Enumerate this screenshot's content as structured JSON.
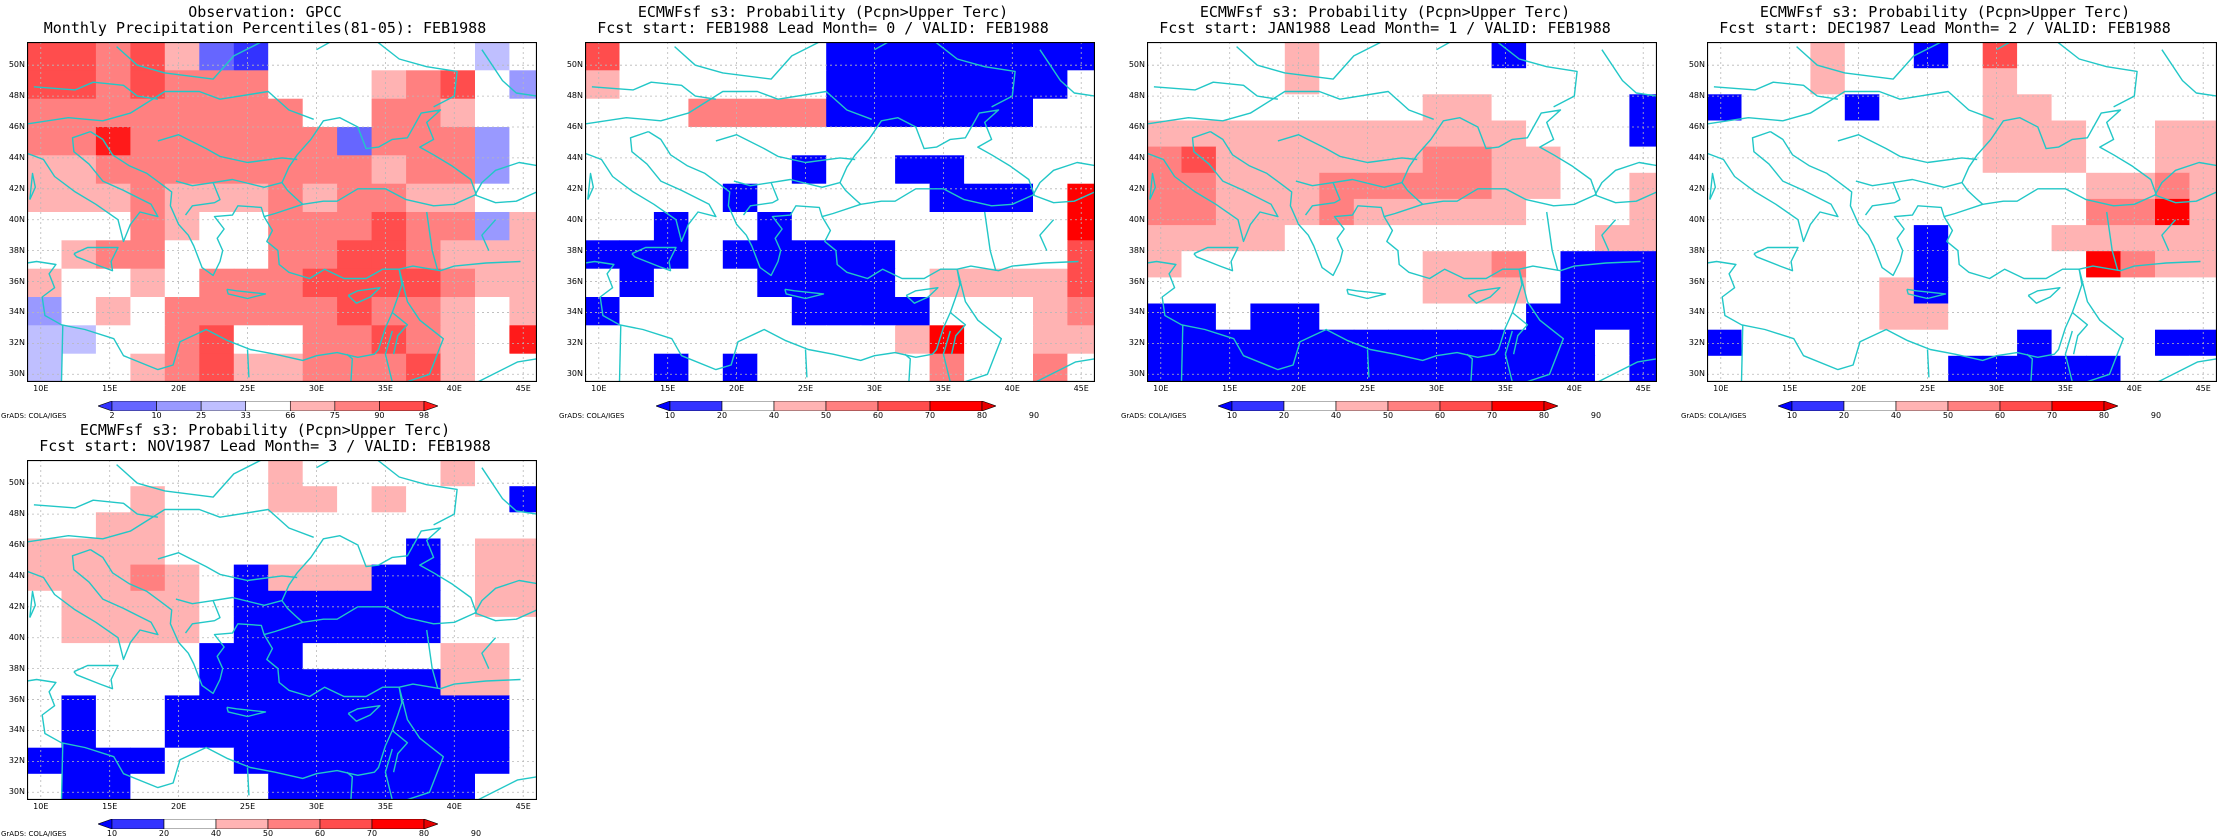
{
  "colors": {
    "percentile_scale": [
      "#3333ff",
      "#6666ff",
      "#9999ff",
      "#bfbfff",
      "#ffffff",
      "#ffb3b3",
      "#ff8080",
      "#ff4d4d",
      "#ff1a1a"
    ],
    "probability_scale": [
      "#0000ff",
      "#3333ff",
      "#ffffff",
      "#ffb3b3",
      "#ff8080",
      "#ff4d4d",
      "#ff0000",
      "#e60000"
    ],
    "coast": "#22c7c7",
    "grid": "#b8b8b8"
  },
  "map_extent": {
    "lon_range": [
      9,
      46
    ],
    "lat_range": [
      29.5,
      51.5
    ],
    "lon_ticks": [
      "10E",
      "15E",
      "20E",
      "25E",
      "30E",
      "35E",
      "40E",
      "45E"
    ],
    "lat_ticks": [
      "50N",
      "48N",
      "46N",
      "44N",
      "42N",
      "40N",
      "38N",
      "36N",
      "34N",
      "32N",
      "30N"
    ],
    "cell_size_deg": 2.5
  },
  "credit": "GrADS: COLA/IGES",
  "panels": [
    {
      "id": "observation",
      "title_line1": "Observation: GPCC",
      "title_line2": "Monthly Precipitation Percentiles(81-05): FEB1988",
      "colorbar": {
        "type": "percentile",
        "labels": [
          "2",
          "10",
          "25",
          "33",
          "66",
          "75",
          "90",
          "98"
        ]
      },
      "grid": [
        [
          7,
          7,
          6,
          7,
          5,
          1,
          0,
          4,
          4,
          4,
          4,
          4,
          4,
          3,
          4
        ],
        [
          7,
          7,
          6,
          7,
          6,
          6,
          6,
          4,
          4,
          4,
          5,
          6,
          7,
          4,
          2
        ],
        [
          6,
          6,
          6,
          6,
          6,
          6,
          6,
          6,
          4,
          4,
          6,
          6,
          5,
          4,
          4
        ],
        [
          6,
          6,
          8,
          6,
          6,
          6,
          6,
          6,
          6,
          1,
          6,
          6,
          6,
          2,
          4
        ],
        [
          5,
          5,
          6,
          6,
          6,
          6,
          6,
          6,
          6,
          6,
          5,
          6,
          6,
          2,
          4
        ],
        [
          5,
          5,
          5,
          6,
          5,
          5,
          5,
          6,
          5,
          6,
          6,
          5,
          5,
          4,
          4
        ],
        [
          4,
          4,
          4,
          6,
          5,
          4,
          4,
          6,
          6,
          6,
          7,
          6,
          6,
          2,
          5
        ],
        [
          4,
          5,
          6,
          6,
          4,
          4,
          4,
          6,
          6,
          7,
          7,
          6,
          5,
          5,
          5
        ],
        [
          5,
          4,
          4,
          5,
          4,
          6,
          6,
          6,
          7,
          7,
          7,
          7,
          6,
          5,
          5
        ],
        [
          2,
          4,
          5,
          4,
          6,
          6,
          6,
          6,
          6,
          7,
          6,
          6,
          5,
          4,
          5
        ],
        [
          3,
          3,
          4,
          4,
          6,
          7,
          4,
          4,
          6,
          6,
          7,
          6,
          5,
          4,
          8
        ],
        [
          3,
          4,
          4,
          5,
          6,
          7,
          5,
          5,
          6,
          6,
          6,
          7,
          5,
          4,
          4
        ]
      ]
    },
    {
      "id": "lead0",
      "title_line1": "ECMWFsf s3: Probability (Pcpn>Upper Terc)",
      "title_line2": "Fcst start: FEB1988   Lead Month= 0 / VALID: FEB1988",
      "colorbar": {
        "type": "probability",
        "labels": [
          "10",
          "20",
          "40",
          "50",
          "60",
          "70",
          "80",
          "90"
        ]
      },
      "grid": [
        [
          5,
          2,
          2,
          2,
          2,
          2,
          2,
          0,
          0,
          0,
          0,
          0,
          0,
          0,
          0
        ],
        [
          3,
          2,
          2,
          2,
          2,
          2,
          2,
          0,
          0,
          0,
          0,
          0,
          0,
          0,
          2
        ],
        [
          2,
          2,
          2,
          4,
          4,
          4,
          4,
          0,
          0,
          0,
          0,
          0,
          0,
          2,
          2
        ],
        [
          2,
          2,
          2,
          2,
          2,
          2,
          2,
          2,
          2,
          2,
          2,
          2,
          2,
          2,
          2
        ],
        [
          2,
          2,
          2,
          2,
          2,
          2,
          0,
          2,
          2,
          0,
          0,
          2,
          2,
          2,
          2
        ],
        [
          2,
          2,
          2,
          2,
          0,
          2,
          2,
          2,
          2,
          2,
          0,
          0,
          0,
          2,
          6
        ],
        [
          2,
          2,
          0,
          2,
          2,
          0,
          2,
          2,
          2,
          2,
          2,
          2,
          2,
          2,
          6
        ],
        [
          0,
          0,
          0,
          2,
          0,
          0,
          0,
          0,
          0,
          2,
          2,
          2,
          2,
          2,
          5
        ],
        [
          2,
          0,
          2,
          2,
          2,
          0,
          0,
          0,
          0,
          2,
          3,
          3,
          3,
          3,
          5
        ],
        [
          0,
          2,
          2,
          2,
          2,
          2,
          0,
          0,
          0,
          0,
          2,
          2,
          2,
          3,
          4
        ],
        [
          2,
          2,
          2,
          2,
          2,
          2,
          2,
          2,
          2,
          3,
          6,
          2,
          2,
          3,
          3
        ],
        [
          2,
          2,
          0,
          2,
          0,
          2,
          2,
          2,
          2,
          2,
          4,
          2,
          2,
          4,
          2
        ]
      ]
    },
    {
      "id": "lead1",
      "title_line1": "ECMWFsf s3: Probability (Pcpn>Upper Terc)",
      "title_line2": "Fcst start: JAN1988   Lead Month= 1 / VALID: FEB1988",
      "colorbar": {
        "type": "probability",
        "labels": [
          "10",
          "20",
          "40",
          "50",
          "60",
          "70",
          "80",
          "90"
        ]
      },
      "grid": [
        [
          2,
          2,
          2,
          2,
          3,
          2,
          2,
          2,
          2,
          2,
          0,
          2,
          2,
          2,
          2
        ],
        [
          2,
          2,
          2,
          2,
          3,
          2,
          2,
          2,
          2,
          2,
          2,
          2,
          2,
          2,
          2
        ],
        [
          2,
          2,
          2,
          2,
          2,
          2,
          2,
          2,
          3,
          3,
          2,
          2,
          2,
          2,
          0
        ],
        [
          3,
          3,
          3,
          3,
          3,
          3,
          3,
          3,
          3,
          3,
          3,
          2,
          2,
          2,
          0
        ],
        [
          4,
          5,
          3,
          3,
          3,
          3,
          3,
          3,
          4,
          4,
          3,
          3,
          2,
          2,
          2
        ],
        [
          4,
          4,
          3,
          3,
          3,
          4,
          4,
          4,
          4,
          4,
          3,
          3,
          2,
          2,
          3
        ],
        [
          4,
          4,
          3,
          3,
          3,
          4,
          3,
          3,
          3,
          3,
          3,
          2,
          2,
          2,
          3
        ],
        [
          3,
          3,
          3,
          3,
          2,
          2,
          2,
          2,
          2,
          2,
          2,
          2,
          2,
          3,
          3
        ],
        [
          3,
          2,
          2,
          2,
          2,
          2,
          2,
          2,
          3,
          3,
          4,
          2,
          0,
          0,
          0
        ],
        [
          2,
          2,
          2,
          2,
          2,
          2,
          2,
          2,
          3,
          3,
          3,
          2,
          0,
          0,
          0
        ],
        [
          0,
          0,
          2,
          0,
          0,
          2,
          2,
          2,
          2,
          2,
          2,
          0,
          0,
          0,
          0
        ],
        [
          0,
          0,
          0,
          0,
          0,
          0,
          0,
          0,
          0,
          0,
          0,
          0,
          0,
          2,
          0
        ],
        [
          0,
          0,
          0,
          0,
          0,
          0,
          0,
          0,
          0,
          0,
          0,
          0,
          0,
          2,
          0
        ]
      ]
    },
    {
      "id": "lead2",
      "title_line1": "ECMWFsf s3: Probability (Pcpn>Upper Terc)",
      "title_line2": "Fcst start: DEC1987   Lead Month= 2 / VALID: FEB1988",
      "colorbar": {
        "type": "probability",
        "labels": [
          "10",
          "20",
          "40",
          "50",
          "60",
          "70",
          "80",
          "90"
        ]
      },
      "grid": [
        [
          2,
          2,
          2,
          3,
          2,
          2,
          0,
          2,
          5,
          2,
          2,
          2,
          2,
          2,
          2
        ],
        [
          2,
          2,
          2,
          3,
          2,
          2,
          2,
          2,
          3,
          2,
          2,
          2,
          2,
          2,
          2
        ],
        [
          0,
          2,
          2,
          2,
          0,
          2,
          2,
          2,
          3,
          3,
          2,
          2,
          2,
          2,
          2
        ],
        [
          2,
          2,
          2,
          2,
          2,
          2,
          2,
          2,
          3,
          3,
          3,
          2,
          2,
          3,
          3
        ],
        [
          2,
          2,
          2,
          2,
          2,
          2,
          2,
          2,
          3,
          3,
          3,
          2,
          2,
          3,
          3
        ],
        [
          2,
          2,
          2,
          2,
          2,
          2,
          2,
          2,
          2,
          2,
          2,
          3,
          3,
          4,
          3
        ],
        [
          2,
          2,
          2,
          2,
          2,
          2,
          2,
          2,
          2,
          2,
          2,
          4,
          4,
          6,
          3
        ],
        [
          2,
          2,
          2,
          2,
          2,
          2,
          0,
          2,
          2,
          2,
          3,
          3,
          3,
          3,
          3
        ],
        [
          2,
          2,
          2,
          2,
          2,
          2,
          0,
          2,
          2,
          2,
          2,
          6,
          4,
          3,
          3
        ],
        [
          2,
          2,
          2,
          2,
          2,
          3,
          0,
          2,
          2,
          2,
          2,
          2,
          2,
          2,
          2
        ],
        [
          2,
          2,
          2,
          2,
          2,
          3,
          3,
          2,
          2,
          2,
          2,
          2,
          2,
          2,
          2
        ],
        [
          0,
          2,
          2,
          2,
          2,
          2,
          2,
          2,
          2,
          0,
          2,
          2,
          2,
          0,
          0
        ],
        [
          2,
          2,
          2,
          2,
          2,
          2,
          2,
          0,
          0,
          0,
          0,
          0,
          2,
          2,
          2
        ]
      ]
    },
    {
      "id": "lead3",
      "title_line1": "ECMWFsf s3: Probability (Pcpn>Upper Terc)",
      "title_line2": "Fcst start: NOV1987   Lead Month= 3 / VALID: FEB1988",
      "colorbar": {
        "type": "probability",
        "labels": [
          "10",
          "20",
          "40",
          "50",
          "60",
          "70",
          "80",
          "90"
        ]
      },
      "grid": [
        [
          2,
          2,
          2,
          2,
          2,
          2,
          2,
          3,
          2,
          2,
          2,
          2,
          3,
          2,
          2
        ],
        [
          2,
          2,
          2,
          3,
          2,
          2,
          2,
          3,
          3,
          2,
          3,
          2,
          2,
          2,
          0
        ],
        [
          2,
          2,
          3,
          3,
          2,
          2,
          2,
          2,
          2,
          2,
          2,
          2,
          2,
          2,
          2
        ],
        [
          3,
          3,
          3,
          3,
          2,
          2,
          2,
          2,
          2,
          2,
          2,
          0,
          2,
          3,
          3
        ],
        [
          3,
          3,
          3,
          4,
          3,
          2,
          0,
          3,
          3,
          3,
          0,
          0,
          2,
          3,
          3
        ],
        [
          2,
          3,
          3,
          3,
          3,
          2,
          0,
          0,
          0,
          0,
          0,
          0,
          2,
          3,
          3
        ],
        [
          2,
          3,
          3,
          3,
          3,
          2,
          0,
          0,
          0,
          0,
          0,
          0,
          2,
          2,
          2
        ],
        [
          2,
          2,
          2,
          2,
          2,
          0,
          0,
          0,
          2,
          2,
          2,
          2,
          3,
          3,
          2
        ],
        [
          2,
          2,
          2,
          2,
          2,
          0,
          0,
          0,
          0,
          0,
          0,
          0,
          3,
          3,
          2
        ],
        [
          2,
          0,
          2,
          2,
          0,
          0,
          0,
          0,
          0,
          0,
          0,
          0,
          0,
          0,
          2
        ],
        [
          2,
          0,
          2,
          2,
          0,
          0,
          0,
          0,
          0,
          0,
          0,
          0,
          0,
          0,
          2
        ],
        [
          0,
          0,
          0,
          0,
          2,
          2,
          0,
          0,
          0,
          0,
          0,
          0,
          0,
          0,
          2
        ],
        [
          2,
          0,
          0,
          2,
          2,
          2,
          2,
          0,
          0,
          0,
          0,
          0,
          0,
          2,
          2
        ]
      ]
    }
  ]
}
